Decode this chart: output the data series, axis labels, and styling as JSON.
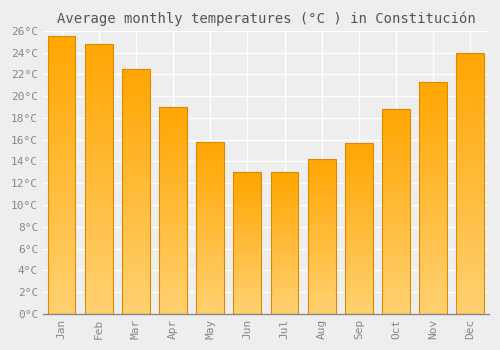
{
  "title": "Average monthly temperatures (°C ) in Constitución",
  "months": [
    "Jan",
    "Feb",
    "Mar",
    "Apr",
    "May",
    "Jun",
    "Jul",
    "Aug",
    "Sep",
    "Oct",
    "Nov",
    "Dec"
  ],
  "values": [
    25.5,
    24.8,
    22.5,
    19.0,
    15.8,
    13.0,
    13.0,
    14.2,
    15.7,
    18.8,
    21.3,
    24.0
  ],
  "bar_color_top": "#FFA500",
  "bar_color_bottom": "#FFD070",
  "bar_edge_color": "#E08800",
  "background_color": "#eeeeee",
  "grid_color": "#ffffff",
  "ylim": [
    0,
    26
  ],
  "ytick_step": 2,
  "title_fontsize": 10,
  "tick_fontsize": 8,
  "tick_color": "#888888",
  "label_color": "#888888",
  "font_family": "monospace"
}
